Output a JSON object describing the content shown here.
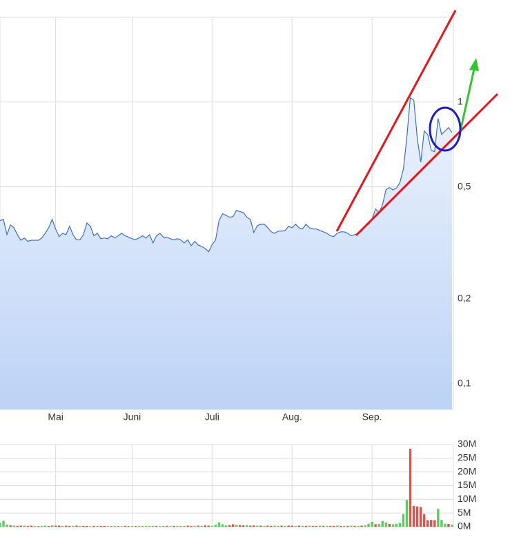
{
  "chart_data": [
    {
      "type": "area",
      "color": "#3a6fc0",
      "log_scale": true,
      "grid": true,
      "xlim": [
        0,
        130
      ],
      "ylim": [
        0.081,
        2
      ],
      "xticks": [
        {
          "value": 16,
          "label": "Mai"
        },
        {
          "value": 38,
          "label": "Juni"
        },
        {
          "value": 61,
          "label": "Juli"
        },
        {
          "value": 84,
          "label": "Aug."
        },
        {
          "value": 107,
          "label": "Sep."
        }
      ],
      "yticks": [
        {
          "value": 0.1,
          "label": "0,1"
        },
        {
          "value": 0.2,
          "label": "0,2"
        },
        {
          "value": 0.5,
          "label": "0,5"
        },
        1
      ],
      "values": [
        0.379,
        0.383,
        0.338,
        0.366,
        0.358,
        0.338,
        0.323,
        0.329,
        0.32,
        0.323,
        0.323,
        0.323,
        0.329,
        0.342,
        0.358,
        0.383,
        0.354,
        0.333,
        0.342,
        0.338,
        0.362,
        0.338,
        0.324,
        0.324,
        0.338,
        0.372,
        0.362,
        0.335,
        0.342,
        0.327,
        0.329,
        0.327,
        0.335,
        0.329,
        0.335,
        0.342,
        0.335,
        0.331,
        0.327,
        0.325,
        0.329,
        0.335,
        0.329,
        0.338,
        0.316,
        0.335,
        0.342,
        0.331,
        0.331,
        0.327,
        0.324,
        0.327,
        0.324,
        0.316,
        0.324,
        0.309,
        0.32,
        0.311,
        0.307,
        0.302,
        0.294,
        0.311,
        0.324,
        0.379,
        0.401,
        0.396,
        0.39,
        0.392,
        0.412,
        0.408,
        0.405,
        0.39,
        0.383,
        0.344,
        0.364,
        0.368,
        0.368,
        0.358,
        0.346,
        0.342,
        0.348,
        0.348,
        0.35,
        0.362,
        0.358,
        0.368,
        0.358,
        0.354,
        0.368,
        0.358,
        0.354,
        0.354,
        0.35,
        0.346,
        0.342,
        0.335,
        0.333,
        0.342,
        0.346,
        0.346,
        0.342,
        0.335,
        0.338,
        0.342,
        0.348,
        0.362,
        0.368,
        0.383,
        0.417,
        0.405,
        0.431,
        0.488,
        0.497,
        0.488,
        0.494,
        0.517,
        0.578,
        0.746,
        1.035,
        1.017,
        0.746,
        0.612,
        0.789,
        0.767,
        0.675,
        0.666,
        0.874,
        0.767,
        0.789,
        0.811,
        0.78
      ]
    },
    {
      "type": "bar",
      "grid": true,
      "xlim": [
        0,
        130
      ],
      "ylim": [
        0,
        30
      ],
      "yticks": [
        {
          "value": 0,
          "label": "0M"
        },
        {
          "value": 5,
          "label": "5M"
        },
        {
          "value": 10,
          "label": "10M"
        },
        {
          "value": 15,
          "label": "15M"
        },
        {
          "value": 20,
          "label": "20M"
        },
        {
          "value": 25,
          "label": "25M"
        },
        {
          "value": 30,
          "label": "30M"
        }
      ],
      "values": [
        1.5,
        2.2,
        0.8,
        0.5,
        0.4,
        0.3,
        0.4,
        0.4,
        0.3,
        0.4,
        0.3,
        0.2,
        0.3,
        0.4,
        0.3,
        0.5,
        0.4,
        0.4,
        0.3,
        0.4,
        0.3,
        0.3,
        0.4,
        0.3,
        0.3,
        0.3,
        0.2,
        0.3,
        0.3,
        0.3,
        0.3,
        0.2,
        0.2,
        0.3,
        0.2,
        0.2,
        0.3,
        0.2,
        0.2,
        0.2,
        0.3,
        0.2,
        0.3,
        0.2,
        0.3,
        0.3,
        0.2,
        0.2,
        0.3,
        0.2,
        0.3,
        0.3,
        0.2,
        0.3,
        0.4,
        0.3,
        0.3,
        0.4,
        0.3,
        0.5,
        0.4,
        0.3,
        0.8,
        1.6,
        0.9,
        0.5,
        0.6,
        0.9,
        0.7,
        0.6,
        0.5,
        0.6,
        0.4,
        0.5,
        0.4,
        0.4,
        0.3,
        0.4,
        0.3,
        0.4,
        0.3,
        0.4,
        0.3,
        0.4,
        0.4,
        0.3,
        0.4,
        0.3,
        0.3,
        0.4,
        0.3,
        0.3,
        0.4,
        0.3,
        0.3,
        0.3,
        0.3,
        0.4,
        0.3,
        0.3,
        0.3,
        0.4,
        0.3,
        0.3,
        0.4,
        0.5,
        1.1,
        1.8,
        0.9,
        1.0,
        2.1,
        1.6,
        1.0,
        0.9,
        1.1,
        1.4,
        4.6,
        9.8,
        28.5,
        7.6,
        7.4,
        7.2,
        4.6,
        2.4,
        2.5,
        2.4,
        6.5,
        2.5,
        1.1,
        1.0,
        0.8
      ],
      "colors": [
        "#5ec95e",
        "#5ec95e",
        "#5ec95e",
        "#d9534f",
        "#5ec95e",
        "#d9534f",
        "#d9534f",
        "#5ec95e",
        "#d9534f",
        "#d9534f",
        "#5ec95e",
        "#d9534f",
        "#5ec95e",
        "#5ec95e",
        "#d9534f",
        "#5ec95e",
        "#d9534f",
        "#d9534f",
        "#5ec95e",
        "#d9534f",
        "#d9534f",
        "#5ec95e",
        "#d9534f",
        "#5ec95e",
        "#d9534f",
        "#d9534f",
        "#5ec95e",
        "#d9534f",
        "#5ec95e",
        "#d9534f",
        "#d9534f",
        "#5ec95e",
        "#d9534f",
        "#5ec95e",
        "#d9534f",
        "#5ec95e",
        "#d9534f",
        "#d9534f",
        "#5ec95e",
        "#d9534f",
        "#5ec95e",
        "#d9534f",
        "#5ec95e",
        "#d9534f",
        "#5ec95e",
        "#d9534f",
        "#5ec95e",
        "#d9534f",
        "#d9534f",
        "#5ec95e",
        "#d9534f",
        "#5ec95e",
        "#d9534f",
        "#5ec95e",
        "#d9534f",
        "#d9534f",
        "#5ec95e",
        "#d9534f",
        "#5ec95e",
        "#d9534f",
        "#d9534f",
        "#5ec95e",
        "#5ec95e",
        "#5ec95e",
        "#5ec95e",
        "#5ec95e",
        "#d9534f",
        "#d9534f",
        "#5ec95e",
        "#d9534f",
        "#d9534f",
        "#5ec95e",
        "#d9534f",
        "#d9534f",
        "#5ec95e",
        "#d9534f",
        "#5ec95e",
        "#d9534f",
        "#d9534f",
        "#5ec95e",
        "#5ec95e",
        "#d9534f",
        "#5ec95e",
        "#d9534f",
        "#d9534f",
        "#5ec95e",
        "#d9534f",
        "#5ec95e",
        "#d9534f",
        "#5ec95e",
        "#d9534f",
        "#d9534f",
        "#5ec95e",
        "#d9534f",
        "#5ec95e",
        "#d9534f",
        "#d9534f",
        "#5ec95e",
        "#d9534f",
        "#5ec95e",
        "#d9534f",
        "#5ec95e",
        "#d9534f",
        "#5ec95e",
        "#d9534f",
        "#5ec95e",
        "#5ec95e",
        "#5ec95e",
        "#d9534f",
        "#5ec95e",
        "#5ec95e",
        "#5ec95e",
        "#d9534f",
        "#5ec95e",
        "#5ec95e",
        "#5ec95e",
        "#5ec95e",
        "#5ec95e",
        "#d9534f",
        "#d9534f",
        "#d9534f",
        "#d9534f",
        "#d9534f",
        "#d9534f",
        "#d9534f",
        "#d9534f",
        "#5ec95e",
        "#5ec95e",
        "#5ec95e",
        "#d9534f",
        "#5ec95e"
      ]
    }
  ]
}
